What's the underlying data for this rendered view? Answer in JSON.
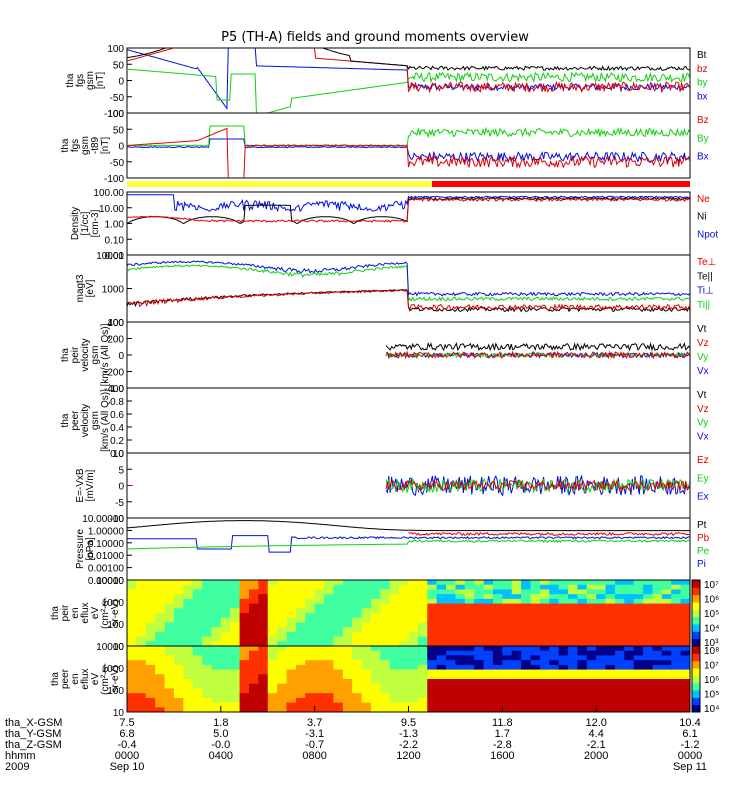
{
  "title": "P5 (TH-A) fields and ground moments overview",
  "colors": {
    "black": "#000000",
    "red": "#e00000",
    "green": "#10d010",
    "blue": "#0010e0",
    "yellow": "#ffff40",
    "bar_red": "#ff0000"
  },
  "chart_data": [
    {
      "type": "line",
      "name": "fgs",
      "ylabel": [
        "tha",
        "fgs",
        "gsm",
        "[nT]"
      ],
      "ylim": [
        -100,
        100
      ],
      "yticks": [
        "100",
        "50",
        "0",
        "-50",
        "-100"
      ],
      "log": false,
      "series": [
        {
          "name": "Bt",
          "color": "black"
        },
        {
          "name": "bz",
          "color": "red"
        },
        {
          "name": "by",
          "color": "green"
        },
        {
          "name": "bx",
          "color": "blue"
        }
      ]
    },
    {
      "type": "line",
      "name": "fgs-t89",
      "ylabel": [
        "tha",
        "fgs",
        "gsm",
        "-t89",
        "[nT]"
      ],
      "ylim": [
        -100,
        100
      ],
      "yticks": [
        "100",
        "50",
        "0",
        "-50",
        "-100"
      ],
      "log": false,
      "series": [
        {
          "name": "Bz",
          "color": "red"
        },
        {
          "name": "By",
          "color": "green"
        },
        {
          "name": "Bx",
          "color": "blue"
        }
      ]
    },
    {
      "type": "line",
      "name": "density",
      "ylabel": [
        "Density",
        "[1/cc]",
        "[cm-3]"
      ],
      "ylim": [
        0.001,
        100
      ],
      "yticks": [
        "100.00",
        "10.00",
        "1.00",
        "0.10",
        "0.01"
      ],
      "log": true,
      "series": [
        {
          "name": "Ne",
          "color": "red"
        },
        {
          "name": "Ni",
          "color": "black"
        },
        {
          "name": "Npot",
          "color": "blue"
        }
      ]
    },
    {
      "type": "line",
      "name": "temperature",
      "ylabel": [
        "magt3",
        "[eV]"
      ],
      "ylim": [
        10,
        10000
      ],
      "yticks": [
        "10000",
        "1000",
        "100"
      ],
      "log": true,
      "series": [
        {
          "name": "Te⊥",
          "color": "red"
        },
        {
          "name": "Te||",
          "color": "black"
        },
        {
          "name": "Ti⊥",
          "color": "blue"
        },
        {
          "name": "Ti||",
          "color": "green"
        }
      ]
    },
    {
      "type": "line",
      "name": "peir-velocity",
      "ylabel": [
        "tha",
        "peir",
        "velocity",
        "gsm",
        "[km/s (All Qs)]"
      ],
      "ylim": [
        -400,
        400
      ],
      "yticks": [
        "400",
        "200",
        "0",
        "-200",
        "-400"
      ],
      "log": false,
      "series": [
        {
          "name": "Vt",
          "color": "black"
        },
        {
          "name": "Vz",
          "color": "red"
        },
        {
          "name": "Vy",
          "color": "green"
        },
        {
          "name": "Vx",
          "color": "blue"
        }
      ]
    },
    {
      "type": "line",
      "name": "peer-velocity",
      "ylabel": [
        "tha",
        "peer",
        "velocity",
        "gsm",
        "[km/s (All Qs)]"
      ],
      "ylim": [
        0,
        1
      ],
      "yticks": [
        "1.0",
        "0.8",
        "0.6",
        "0.4",
        "0.2",
        "0.0"
      ],
      "log": false,
      "series": [
        {
          "name": "Vt",
          "color": "black"
        },
        {
          "name": "Vz",
          "color": "red"
        },
        {
          "name": "Vy",
          "color": "green"
        },
        {
          "name": "Vx",
          "color": "blue"
        }
      ]
    },
    {
      "type": "line",
      "name": "efield",
      "ylabel": [
        "E=-VxB",
        "[mV/m]"
      ],
      "ylim": [
        -10,
        10
      ],
      "yticks": [
        "10",
        "5",
        "0",
        "-5",
        "-10"
      ],
      "log": false,
      "series": [
        {
          "name": "Ez",
          "color": "red"
        },
        {
          "name": "Ey",
          "color": "green"
        },
        {
          "name": "Ex",
          "color": "blue"
        }
      ]
    },
    {
      "type": "line",
      "name": "pressure",
      "ylabel": [
        "Pressure",
        "[nPa]"
      ],
      "ylim": [
        1e-05,
        10
      ],
      "yticks": [
        "10.00000",
        "1.00000",
        "0.10000",
        "0.01000",
        "0.00100",
        "0.00010"
      ],
      "log": true,
      "series": [
        {
          "name": "Pt",
          "color": "black"
        },
        {
          "name": "Pb",
          "color": "red"
        },
        {
          "name": "Pe",
          "color": "green"
        },
        {
          "name": "Pi",
          "color": "blue"
        }
      ]
    },
    {
      "type": "heatmap",
      "name": "peir-eflux",
      "ylabel": [
        "tha",
        "peir",
        "en",
        "eflux",
        "eV",
        "(cm²-s-",
        "sr-eV)"
      ],
      "yticks": [
        "10000",
        "1000",
        "100",
        "10"
      ],
      "colorbar": [
        "10⁷",
        "10⁶",
        "10⁵",
        "10⁴",
        "10³"
      ]
    },
    {
      "type": "heatmap",
      "name": "peer-eflux",
      "ylabel": [
        "tha",
        "peer",
        "en",
        "eflux",
        "eV",
        "(cm²-s-",
        "sr-eV)"
      ],
      "yticks": [
        "10000",
        "1000",
        "100",
        "10"
      ],
      "colorbar": [
        "10⁸",
        "10⁷",
        "10⁶",
        "10⁵",
        "10⁴"
      ]
    }
  ],
  "x_axis": {
    "row_labels": [
      "tha_X-GSM",
      "tha_Y-GSM",
      "tha_Z-GSM",
      "hhmm",
      "2009"
    ],
    "ticks": [
      {
        "x": "7.5",
        "y": "6.8",
        "z": "-0.4",
        "hhmm": "0000",
        "date": "Sep 10"
      },
      {
        "x": "1.8",
        "y": "5.0",
        "z": "-0.0",
        "hhmm": "0400",
        "date": ""
      },
      {
        "x": "3.7",
        "y": "-3.1",
        "z": "-0.7",
        "hhmm": "0800",
        "date": ""
      },
      {
        "x": "9.5",
        "y": "-1.3",
        "z": "-2.2",
        "hhmm": "1200",
        "date": ""
      },
      {
        "x": "11.8",
        "y": "1.7",
        "z": "-2.8",
        "hhmm": "1600",
        "date": ""
      },
      {
        "x": "12.0",
        "y": "4.4",
        "z": "-2.1",
        "hhmm": "2000",
        "date": ""
      },
      {
        "x": "10.4",
        "y": "6.1",
        "z": "-1.2",
        "hhmm": "0000",
        "date": "Sep 11"
      }
    ]
  },
  "mode_bar": {
    "yellow_until_hhmm": "1300",
    "red_after_hhmm": "1300"
  }
}
